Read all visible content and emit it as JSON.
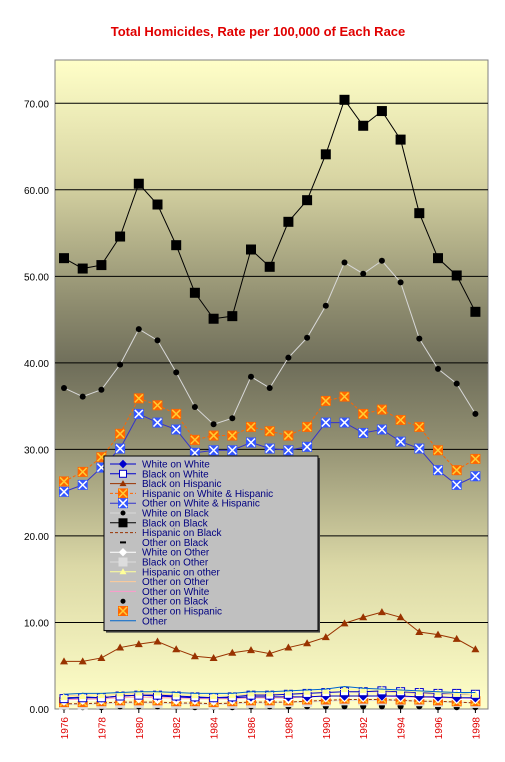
{
  "chart_data": {
    "type": "line",
    "title": "Total Homicides, Rate per 100,000 of Each Race",
    "xlabel": "",
    "ylabel": "",
    "ylim": [
      0,
      75
    ],
    "y_ticks": [
      "0.00",
      "10.00",
      "20.00",
      "30.00",
      "40.00",
      "50.00",
      "60.00",
      "70.00"
    ],
    "x": [
      1976,
      1977,
      1978,
      1979,
      1980,
      1981,
      1982,
      1983,
      1984,
      1985,
      1986,
      1987,
      1988,
      1989,
      1990,
      1991,
      1992,
      1993,
      1994,
      1995,
      1996,
      1997,
      1998
    ],
    "x_tick_labels": [
      "1976",
      "1978",
      "1980",
      "1982",
      "1984",
      "1986",
      "1988",
      "1990",
      "1992",
      "1994",
      "1996",
      "1998"
    ],
    "grid": true,
    "legend": "center-left",
    "series": [
      {
        "name": "White on White",
        "color": "#0000cc",
        "marker": "diamond",
        "line": "#0000cc",
        "values": [
          1.3,
          1.4,
          1.3,
          1.5,
          1.6,
          1.5,
          1.4,
          1.3,
          1.3,
          1.3,
          1.4,
          1.4,
          1.4,
          1.4,
          1.5,
          1.5,
          1.5,
          1.5,
          1.5,
          1.4,
          1.4,
          1.3,
          1.3
        ]
      },
      {
        "name": "Black on White",
        "color": "#0000cc",
        "marker": "square-open",
        "line": "#0000cc",
        "values": [
          1.2,
          1.3,
          1.3,
          1.5,
          1.6,
          1.6,
          1.5,
          1.4,
          1.3,
          1.4,
          1.6,
          1.6,
          1.7,
          1.8,
          1.9,
          2.0,
          2.0,
          2.1,
          2.0,
          1.9,
          1.8,
          1.8,
          1.7
        ]
      },
      {
        "name": "Black on Hispanic",
        "color": "#993300",
        "marker": "triangle",
        "line": "#993300",
        "values": [
          5.5,
          5.5,
          5.9,
          7.1,
          7.5,
          7.8,
          6.9,
          6.1,
          5.9,
          6.5,
          6.8,
          6.4,
          7.1,
          7.6,
          8.3,
          9.9,
          10.6,
          11.2,
          10.6,
          8.9,
          8.6,
          8.1,
          6.9
        ]
      },
      {
        "name": "Hispanic on White & Hispanic",
        "color": "#ff6600",
        "marker": "x-orange",
        "line": "#ff6600",
        "values": [
          26.3,
          27.4,
          29.1,
          31.8,
          35.9,
          35.1,
          34.1,
          31.1,
          31.6,
          31.6,
          32.6,
          32.1,
          31.6,
          32.6,
          35.6,
          36.1,
          34.1,
          34.6,
          33.4,
          32.6,
          29.9,
          27.6,
          28.9
        ]
      },
      {
        "name": "Other on White & Hispanic",
        "color": "#0000ff",
        "marker": "x-blue",
        "line": "#3333cc",
        "values": [
          25.1,
          25.9,
          27.9,
          30.1,
          34.1,
          33.1,
          32.3,
          29.6,
          29.9,
          29.9,
          30.8,
          30.1,
          29.9,
          30.3,
          33.1,
          33.1,
          31.9,
          32.3,
          30.9,
          30.1,
          27.6,
          25.9,
          26.9
        ]
      },
      {
        "name": "White on Black",
        "color": "#000000",
        "marker": "circle",
        "line": "#d8d8d8",
        "values": [
          37.1,
          36.1,
          36.9,
          39.8,
          43.9,
          42.6,
          38.9,
          34.9,
          32.9,
          33.6,
          38.4,
          37.1,
          40.6,
          42.9,
          46.6,
          51.6,
          50.3,
          51.8,
          49.3,
          42.8,
          39.3,
          37.6,
          34.1
        ]
      },
      {
        "name": "Black on Black",
        "color": "#000000",
        "marker": "square",
        "line": "#000000",
        "values": [
          52.1,
          50.9,
          51.3,
          54.6,
          60.7,
          58.3,
          53.6,
          48.1,
          45.1,
          45.4,
          53.1,
          51.1,
          56.3,
          58.8,
          64.1,
          70.4,
          67.4,
          69.1,
          65.8,
          57.3,
          52.1,
          50.1,
          45.9
        ]
      },
      {
        "name": "Hispanic on Black",
        "color": "#993300",
        "marker": "none",
        "line": "#993300",
        "values": [
          0.6,
          0.6,
          0.7,
          0.8,
          0.8,
          0.8,
          0.7,
          0.7,
          0.6,
          0.7,
          0.8,
          0.8,
          0.8,
          0.9,
          1.0,
          1.1,
          1.1,
          1.1,
          1.0,
          0.9,
          0.9,
          0.8,
          0.7
        ]
      },
      {
        "name": "Other on Black",
        "color": "#000000",
        "marker": "dash",
        "line": "none",
        "values": [
          0.3,
          0.3,
          0.3,
          0.3,
          0.4,
          0.4,
          0.3,
          0.3,
          0.3,
          0.3,
          0.3,
          0.3,
          0.3,
          0.3,
          0.4,
          0.4,
          0.4,
          0.4,
          0.4,
          0.3,
          0.3,
          0.3,
          0.3
        ]
      },
      {
        "name": "White on Other",
        "color": "#ffffff",
        "marker": "diamond",
        "line": "#ffffff",
        "values": [
          0.9,
          1.0,
          1.0,
          1.1,
          1.2,
          1.1,
          1.0,
          1.0,
          0.9,
          1.0,
          1.1,
          1.1,
          1.1,
          1.2,
          1.3,
          1.3,
          1.3,
          1.4,
          1.3,
          1.2,
          1.2,
          1.1,
          1.1
        ]
      },
      {
        "name": "Black on Other",
        "color": "#dddddd",
        "marker": "square",
        "line": "#dddddd",
        "values": [
          0.5,
          0.5,
          0.6,
          0.7,
          0.7,
          0.7,
          0.6,
          0.6,
          0.5,
          0.6,
          0.7,
          0.7,
          0.8,
          0.8,
          0.9,
          1.0,
          1.0,
          1.0,
          1.0,
          0.9,
          0.8,
          0.8,
          0.7
        ]
      },
      {
        "name": "Hispanic on other",
        "color": "#ffff99",
        "marker": "triangle",
        "line": "#ffff99",
        "values": [
          1.4,
          1.5,
          1.6,
          1.8,
          1.9,
          1.9,
          1.7,
          1.6,
          1.5,
          1.6,
          1.8,
          1.8,
          1.9,
          2.0,
          2.1,
          2.3,
          2.2,
          2.2,
          2.1,
          2.0,
          1.9,
          1.8,
          1.7
        ]
      },
      {
        "name": "Other on Other",
        "color": "#ffcc99",
        "marker": "none",
        "line": "#ffcc99",
        "values": [
          1.5,
          1.6,
          1.6,
          1.7,
          1.8,
          1.7,
          1.7,
          1.6,
          1.5,
          1.6,
          1.7,
          1.7,
          1.7,
          1.8,
          1.9,
          2.0,
          2.0,
          2.0,
          1.9,
          1.8,
          1.7,
          1.7,
          1.6
        ]
      },
      {
        "name": "Other on White",
        "color": "#ff99cc",
        "marker": "none",
        "line": "#ff99cc",
        "values": [
          1.1,
          1.1,
          1.2,
          1.3,
          1.4,
          1.3,
          1.3,
          1.2,
          1.2,
          1.2,
          1.3,
          1.3,
          1.3,
          1.4,
          1.5,
          1.5,
          1.5,
          1.5,
          1.4,
          1.4,
          1.3,
          1.3,
          1.2
        ]
      },
      {
        "name": "Other on Black",
        "color": "#000000",
        "marker": "circle",
        "line": "none",
        "values": [
          0.2,
          0.2,
          0.2,
          0.3,
          0.3,
          0.3,
          0.3,
          0.2,
          0.2,
          0.2,
          0.3,
          0.3,
          0.3,
          0.3,
          0.3,
          0.3,
          0.3,
          0.3,
          0.3,
          0.3,
          0.2,
          0.2,
          0.2
        ]
      },
      {
        "name": "Other on Hispanic",
        "color": "#ff6600",
        "marker": "x-orange",
        "line": "none",
        "values": [
          0.8,
          0.8,
          0.9,
          1.0,
          1.0,
          1.0,
          0.9,
          0.9,
          0.8,
          0.9,
          1.0,
          1.0,
          1.0,
          1.1,
          1.1,
          1.2,
          1.2,
          1.2,
          1.1,
          1.1,
          1.0,
          0.9,
          0.9
        ]
      },
      {
        "name": "Other",
        "color": "#0066cc",
        "marker": "none",
        "line": "#0066cc",
        "values": [
          1.7,
          1.8,
          1.8,
          1.9,
          2.0,
          2.0,
          1.9,
          1.8,
          1.8,
          1.8,
          2.0,
          2.0,
          2.1,
          2.2,
          2.3,
          2.6,
          2.4,
          2.3,
          2.2,
          2.1,
          2.0,
          1.9,
          1.9
        ]
      }
    ]
  }
}
